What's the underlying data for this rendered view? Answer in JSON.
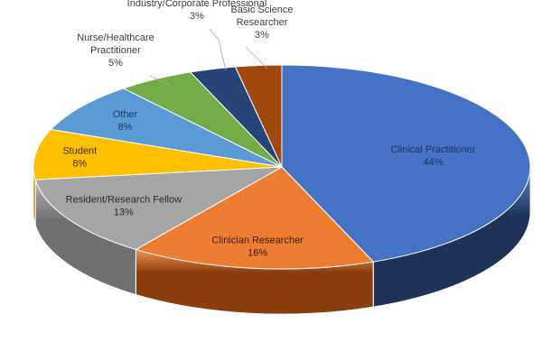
{
  "chart_data": {
    "type": "pie",
    "style": "3d",
    "categories": [
      "Clinical Practitioner",
      "Clinician Researcher",
      "Resident/Research Fellow",
      "Student",
      "Other",
      "Nurse/Healthcare Practitioner",
      "Industry/Corporate Professional",
      "Basic Science Researcher"
    ],
    "values": [
      44,
      16,
      13,
      8,
      8,
      5,
      3,
      3
    ],
    "value_labels": [
      "44%",
      "16%",
      "13%",
      "8%",
      "8%",
      "5%",
      "3%",
      "3%"
    ],
    "label_lines": [
      [
        "Clinical Practitioner"
      ],
      [
        "Clinician Researcher"
      ],
      [
        "Resident/Research Fellow"
      ],
      [
        "Student"
      ],
      [
        "Other"
      ],
      [
        "Nurse/Healthcare",
        "Practitioner"
      ],
      [
        "Industry/Corporate Professional"
      ],
      [
        "Basic Science",
        "Researcher"
      ]
    ],
    "colors": [
      "#4472C4",
      "#ED7D31",
      "#A5A5A5",
      "#FFC000",
      "#5B9BD5",
      "#70AD47",
      "#264478",
      "#9E480E"
    ],
    "side_colors": [
      "#1F3259",
      "#8A3E0D",
      "#707070",
      "#A07A00",
      "#2E5F8A",
      "#3E6A25",
      "#141F38",
      "#5A2606"
    ],
    "label_colors": [
      "#1F3864",
      "#3A1A05",
      "#2B2B2B",
      "#3A2A00",
      "#1F3864",
      "#404040",
      "#404040",
      "#404040"
    ],
    "start_direction": "top",
    "legend": "none",
    "title": ""
  }
}
